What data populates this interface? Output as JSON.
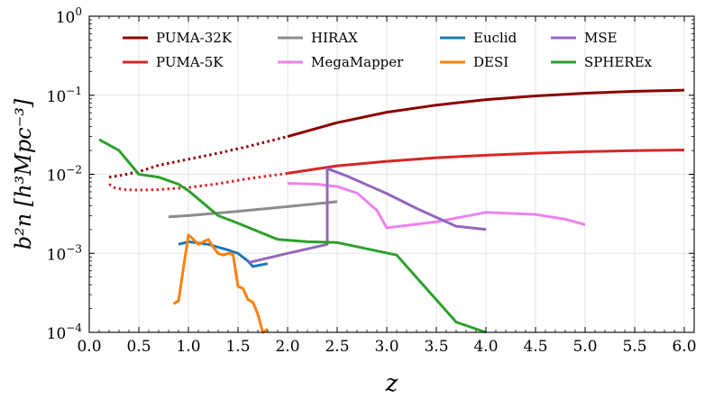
{
  "chart_data": {
    "type": "line",
    "title": "",
    "xlabel": "z",
    "ylabel": "b²n [h³Mpc⁻³]",
    "xlim": [
      0.0,
      6.1
    ],
    "ylim": [
      0.0001,
      1
    ],
    "yscale": "log",
    "grid": true,
    "legend": "top, 4 columns",
    "x_ticks": [
      "0.0",
      "0.5",
      "1.0",
      "1.5",
      "2.0",
      "2.5",
      "3.0",
      "3.5",
      "4.0",
      "4.5",
      "5.0",
      "5.5",
      "6.0"
    ],
    "y_ticks": [
      {
        "base": "10",
        "exp": "0"
      },
      {
        "base": "10",
        "exp": "−1"
      },
      {
        "base": "10",
        "exp": "−2"
      },
      {
        "base": "10",
        "exp": "−3"
      },
      {
        "base": "10",
        "exp": "−4"
      }
    ],
    "series": [
      {
        "name": "PUMA-32K",
        "color": "#8b0000",
        "dotted_x": [
          0.2,
          0.3,
          0.5,
          0.7,
          1.0,
          1.3,
          1.6,
          2.0
        ],
        "dotted_y": [
          0.0092,
          0.0096,
          0.0108,
          0.013,
          0.0155,
          0.0185,
          0.0225,
          0.03
        ],
        "x": [
          2.0,
          2.5,
          3.0,
          3.5,
          4.0,
          4.5,
          5.0,
          5.5,
          6.0
        ],
        "y": [
          0.03,
          0.045,
          0.061,
          0.075,
          0.088,
          0.098,
          0.106,
          0.112,
          0.116
        ]
      },
      {
        "name": "PUMA-5K",
        "color": "#d62728",
        "dotted_x": [
          0.2,
          0.25,
          0.35,
          0.5,
          0.7,
          1.0,
          1.3,
          1.6,
          2.0
        ],
        "dotted_y": [
          0.0075,
          0.0068,
          0.0064,
          0.0063,
          0.0064,
          0.0068,
          0.0076,
          0.0088,
          0.0103
        ],
        "x": [
          2.0,
          2.5,
          3.0,
          3.5,
          4.0,
          4.5,
          5.0,
          5.5,
          6.0
        ],
        "y": [
          0.0103,
          0.0128,
          0.0146,
          0.0162,
          0.0174,
          0.0185,
          0.0193,
          0.0199,
          0.0203
        ]
      },
      {
        "name": "HIRAX",
        "color": "#8c8c8c",
        "x": [
          0.8,
          1.0,
          1.5,
          2.0,
          2.5
        ],
        "y": [
          0.0029,
          0.003,
          0.0034,
          0.0039,
          0.0045
        ]
      },
      {
        "name": "MegaMapper",
        "color": "#ee82ee",
        "x": [
          2.0,
          2.3,
          2.5,
          2.7,
          2.9,
          3.0,
          3.5,
          4.0,
          4.5,
          4.8,
          5.0
        ],
        "y": [
          0.0077,
          0.0075,
          0.007,
          0.0058,
          0.0035,
          0.0021,
          0.0025,
          0.0033,
          0.0031,
          0.0027,
          0.0023
        ]
      },
      {
        "name": "Euclid",
        "color": "#1f77b4",
        "x": [
          0.9,
          1.0,
          1.2,
          1.4,
          1.5,
          1.6,
          1.65,
          1.8
        ],
        "y": [
          0.0013,
          0.0014,
          0.0013,
          0.0011,
          0.001,
          0.0008,
          0.00068,
          0.00074
        ]
      },
      {
        "name": "DESI",
        "color": "#ff7f0e",
        "x": [
          0.85,
          0.9,
          1.0,
          1.05,
          1.1,
          1.15,
          1.2,
          1.25,
          1.3,
          1.35,
          1.4,
          1.45,
          1.5,
          1.55,
          1.6,
          1.65,
          1.7,
          1.75,
          1.8
        ],
        "y": [
          0.00023,
          0.00025,
          0.0017,
          0.0015,
          0.0013,
          0.0014,
          0.0015,
          0.0012,
          0.001,
          0.00095,
          0.001,
          0.00097,
          0.00038,
          0.00036,
          0.00026,
          0.00024,
          0.00017,
          0.0001,
          0.00011
        ]
      },
      {
        "name": "MSE",
        "color": "#9467bd",
        "x": [
          1.6,
          2.0,
          2.4,
          2.4,
          2.6,
          3.0,
          3.3,
          3.7,
          4.0
        ],
        "y": [
          0.00076,
          0.001,
          0.0013,
          0.0118,
          0.0095,
          0.0057,
          0.0037,
          0.0022,
          0.002
        ]
      },
      {
        "name": "SPHEREx",
        "color": "#2ca02c",
        "x": [
          0.1,
          0.3,
          0.5,
          0.7,
          0.9,
          1.0,
          1.3,
          1.5,
          1.9,
          2.2,
          2.5,
          3.1,
          3.7,
          4.0
        ],
        "y": [
          0.0275,
          0.02,
          0.01,
          0.0092,
          0.0075,
          0.0062,
          0.003,
          0.0024,
          0.0015,
          0.0014,
          0.00137,
          0.00095,
          0.000135,
          0.0001
        ]
      }
    ]
  }
}
